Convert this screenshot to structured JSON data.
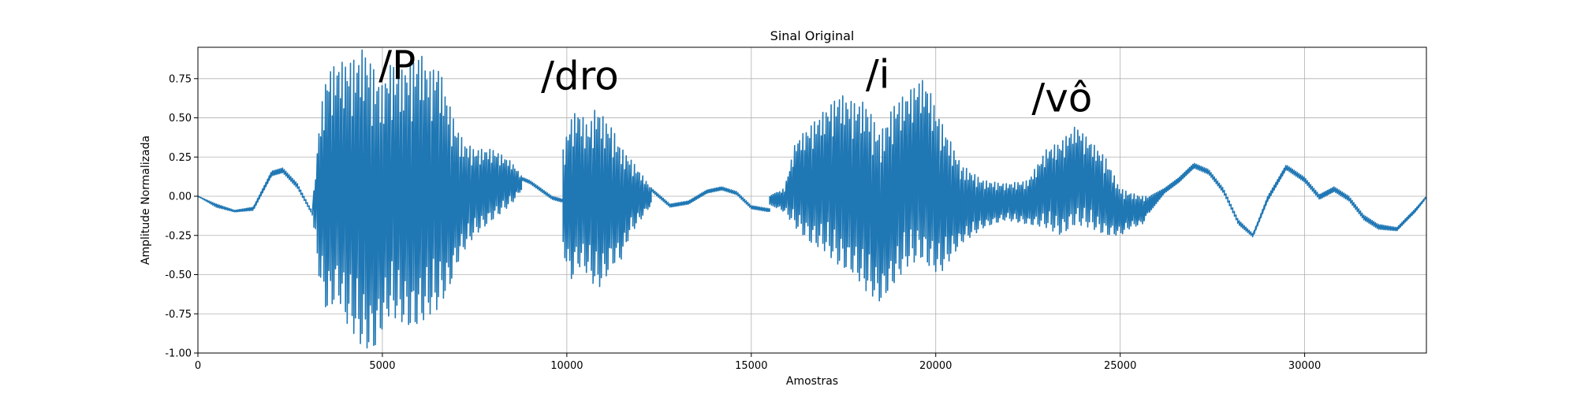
{
  "chart_data": {
    "type": "line",
    "title": "Sinal Original",
    "xlabel": "Amostras",
    "ylabel": "Amplitude Normalizada",
    "xlim": [
      0,
      33300
    ],
    "ylim": [
      -1.0,
      0.95
    ],
    "xticks": [
      0,
      5000,
      10000,
      15000,
      20000,
      25000,
      30000
    ],
    "yticks": [
      -1.0,
      -0.75,
      -0.5,
      -0.25,
      0.0,
      0.25,
      0.5,
      0.75
    ],
    "grid": true,
    "color": "#1f77b4",
    "annotations": [
      {
        "text": "/P",
        "x": 4900,
        "y": 0.75
      },
      {
        "text": "/dro",
        "x": 9300,
        "y": 0.68
      },
      {
        "text": "/i",
        "x": 18100,
        "y": 0.69
      },
      {
        "text": "/vô",
        "x": 22600,
        "y": 0.54
      }
    ],
    "series": [
      {
        "envelope_segments": [
          {
            "x": [
              0,
              500,
              1000,
              1500,
              2000,
              2300,
              2700,
              3100
            ],
            "upper": [
              0.0,
              -0.05,
              -0.09,
              -0.07,
              0.16,
              0.18,
              0.08,
              -0.1
            ],
            "lower": [
              0.0,
              -0.07,
              -0.1,
              -0.09,
              0.13,
              0.15,
              0.05,
              -0.12
            ]
          },
          {
            "x": [
              3100,
              3300,
              3500,
              3800,
              4000,
              4300,
              4500,
              4800,
              5000,
              5200,
              5500,
              5800,
              6000,
              6300,
              6500,
              6800,
              7000,
              7200,
              7500,
              8000,
              8500,
              8800
            ],
            "upper": [
              -0.1,
              0.5,
              0.8,
              0.85,
              0.86,
              0.88,
              0.95,
              0.8,
              0.7,
              0.85,
              0.8,
              0.85,
              0.92,
              0.8,
              0.85,
              0.6,
              0.45,
              0.35,
              0.3,
              0.3,
              0.22,
              0.12
            ],
            "lower": [
              -0.12,
              -0.55,
              -0.75,
              -0.65,
              -0.8,
              -0.9,
              -0.98,
              -0.98,
              -0.85,
              -0.75,
              -0.8,
              -0.85,
              -0.82,
              -0.75,
              -0.72,
              -0.6,
              -0.45,
              -0.35,
              -0.25,
              -0.15,
              -0.05,
              0.05
            ]
          },
          {
            "x": [
              8800,
              9000,
              9300,
              9600,
              9900
            ],
            "upper": [
              0.12,
              0.1,
              0.05,
              0.0,
              -0.02
            ],
            "lower": [
              0.1,
              0.08,
              0.03,
              -0.02,
              -0.04
            ]
          },
          {
            "x": [
              9900,
              10100,
              10300,
              10600,
              10800,
              11000,
              11200,
              11500,
              11700,
              12000,
              12300
            ],
            "upper": [
              0.3,
              0.5,
              0.55,
              0.45,
              0.58,
              0.5,
              0.45,
              0.3,
              0.25,
              0.15,
              0.05
            ],
            "lower": [
              -0.35,
              -0.55,
              -0.45,
              -0.5,
              -0.6,
              -0.55,
              -0.45,
              -0.4,
              -0.25,
              -0.15,
              -0.05
            ]
          },
          {
            "x": [
              12300,
              12800,
              13300,
              13800,
              14200,
              14600,
              15000,
              15500
            ],
            "upper": [
              0.05,
              -0.05,
              -0.03,
              0.04,
              0.06,
              0.03,
              -0.06,
              -0.08
            ],
            "lower": [
              0.03,
              -0.07,
              -0.05,
              0.02,
              0.04,
              0.01,
              -0.08,
              -0.1
            ]
          },
          {
            "x": [
              15500,
              15900,
              16200,
              16600,
              17000,
              17400,
              17800,
              18100,
              18500,
              18900,
              19200,
              19600,
              19800,
              20100,
              20400,
              20700
            ],
            "upper": [
              0.0,
              0.05,
              0.35,
              0.45,
              0.55,
              0.65,
              0.6,
              0.6,
              0.4,
              0.6,
              0.65,
              0.75,
              0.7,
              0.5,
              0.35,
              0.2
            ],
            "lower": [
              -0.05,
              -0.1,
              -0.2,
              -0.3,
              -0.35,
              -0.45,
              -0.5,
              -0.6,
              -0.68,
              -0.55,
              -0.45,
              -0.4,
              -0.45,
              -0.5,
              -0.4,
              -0.3
            ]
          },
          {
            "x": [
              20700,
              21300,
              21900,
              22500,
              23000,
              23400,
              23800,
              24200,
              24600,
              25000,
              25300,
              25600,
              25800
            ],
            "upper": [
              0.2,
              0.1,
              0.08,
              0.1,
              0.3,
              0.35,
              0.45,
              0.35,
              0.25,
              0.05,
              0.02,
              0.0,
              0.0
            ],
            "lower": [
              -0.3,
              -0.2,
              -0.15,
              -0.18,
              -0.2,
              -0.25,
              -0.18,
              -0.2,
              -0.25,
              -0.25,
              -0.2,
              -0.18,
              -0.1
            ]
          },
          {
            "x": [
              25800,
              26200,
              26600,
              27000,
              27400,
              27800,
              28200,
              28600,
              29000,
              29500,
              30000,
              30400,
              30800,
              31200,
              31600,
              32000,
              32500,
              33000,
              33300
            ],
            "upper": [
              0.0,
              0.05,
              0.12,
              0.21,
              0.17,
              0.05,
              -0.15,
              -0.24,
              0.0,
              0.2,
              0.12,
              0.01,
              0.06,
              0.0,
              -0.12,
              -0.18,
              -0.2,
              -0.08,
              0.0
            ],
            "lower": [
              -0.1,
              0.02,
              0.09,
              0.18,
              0.14,
              0.02,
              -0.18,
              -0.26,
              -0.03,
              0.17,
              0.09,
              -0.02,
              0.03,
              -0.03,
              -0.15,
              -0.21,
              -0.22,
              -0.1,
              -0.01
            ]
          }
        ]
      }
    ]
  }
}
